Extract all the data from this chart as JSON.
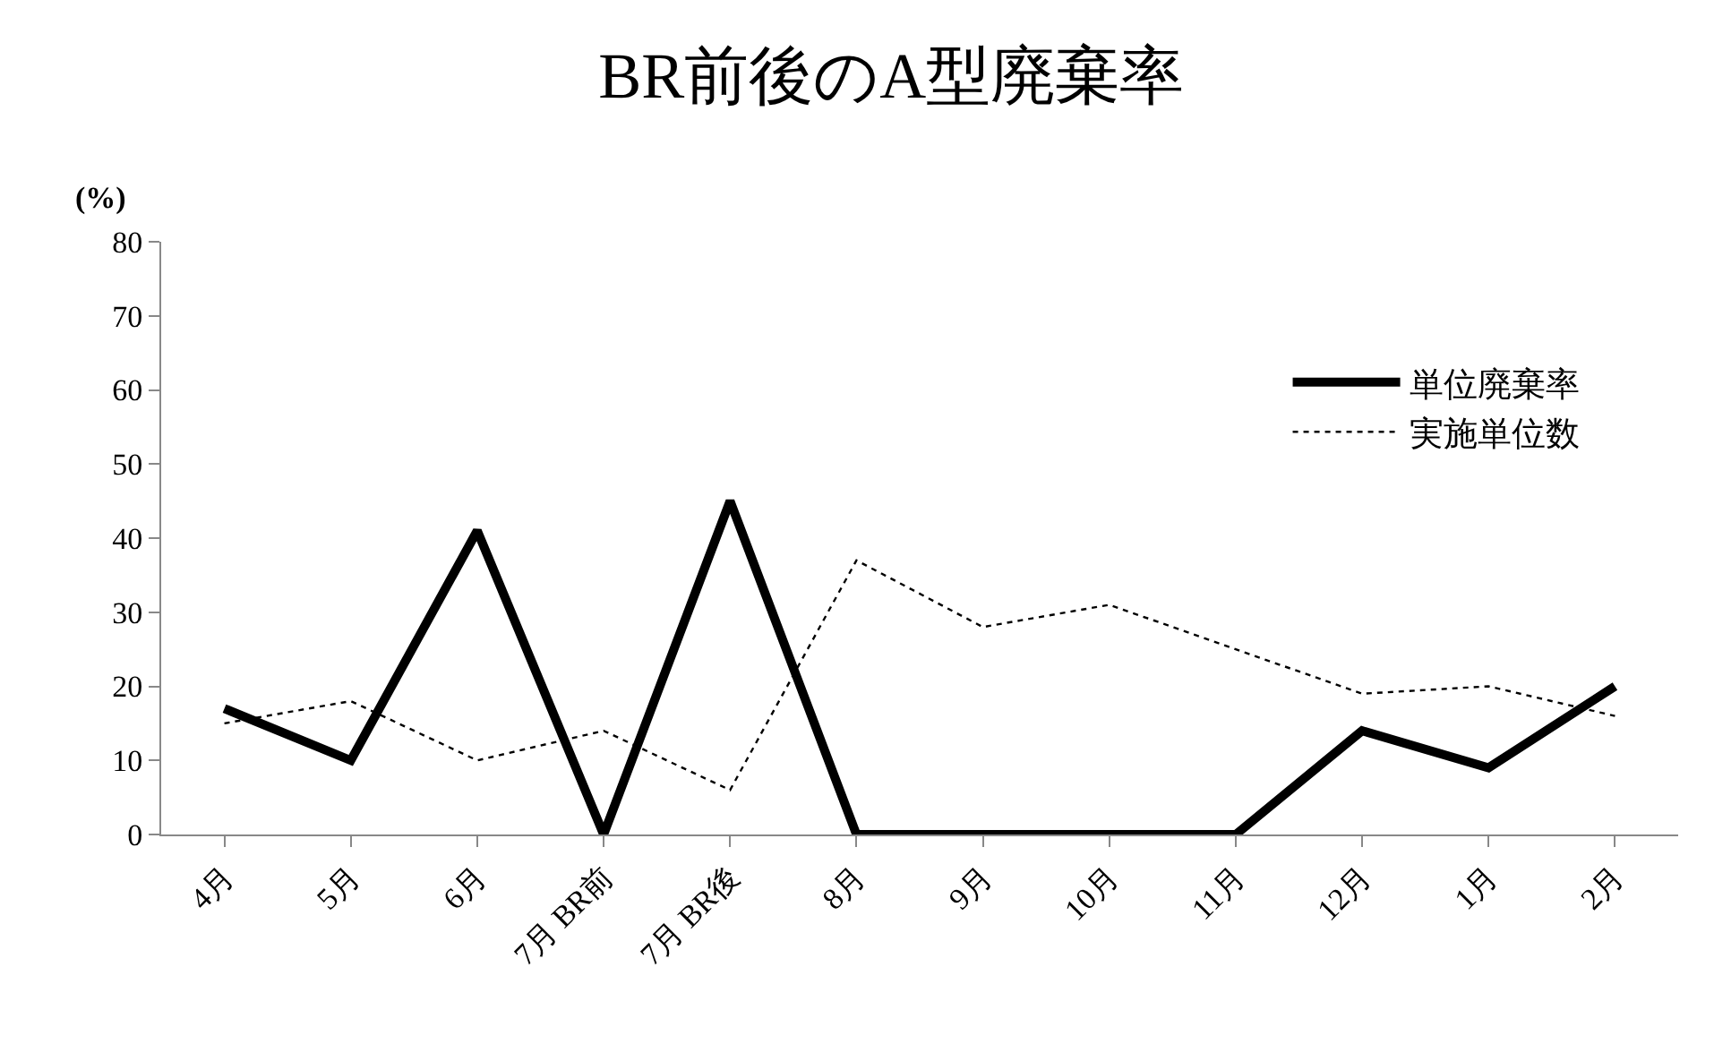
{
  "chart_data": {
    "type": "line",
    "title": "BR前後のA型廃棄率",
    "ylabel": "(%)",
    "categories": [
      "4月",
      "5月",
      "6月",
      "7月 BR前",
      "7月 BR後",
      "8月",
      "9月",
      "10月",
      "11月",
      "12月",
      "1月",
      "2月"
    ],
    "series": [
      {
        "name": "単位廃棄率",
        "color": "#000000",
        "line_style": "solid",
        "values": [
          17,
          10,
          41,
          0,
          45,
          0,
          0,
          0,
          0,
          14,
          9,
          20
        ]
      },
      {
        "name": "実施単位数",
        "color": "#000000",
        "line_style": "dotted",
        "values": [
          15,
          18,
          10,
          14,
          6,
          37,
          28,
          31,
          25,
          19,
          20,
          16
        ]
      }
    ],
    "ylim": [
      0,
      80
    ],
    "yticks": [
      0,
      10,
      20,
      30,
      40,
      50,
      60,
      70,
      80
    ],
    "legend": "right",
    "marker": "none"
  }
}
